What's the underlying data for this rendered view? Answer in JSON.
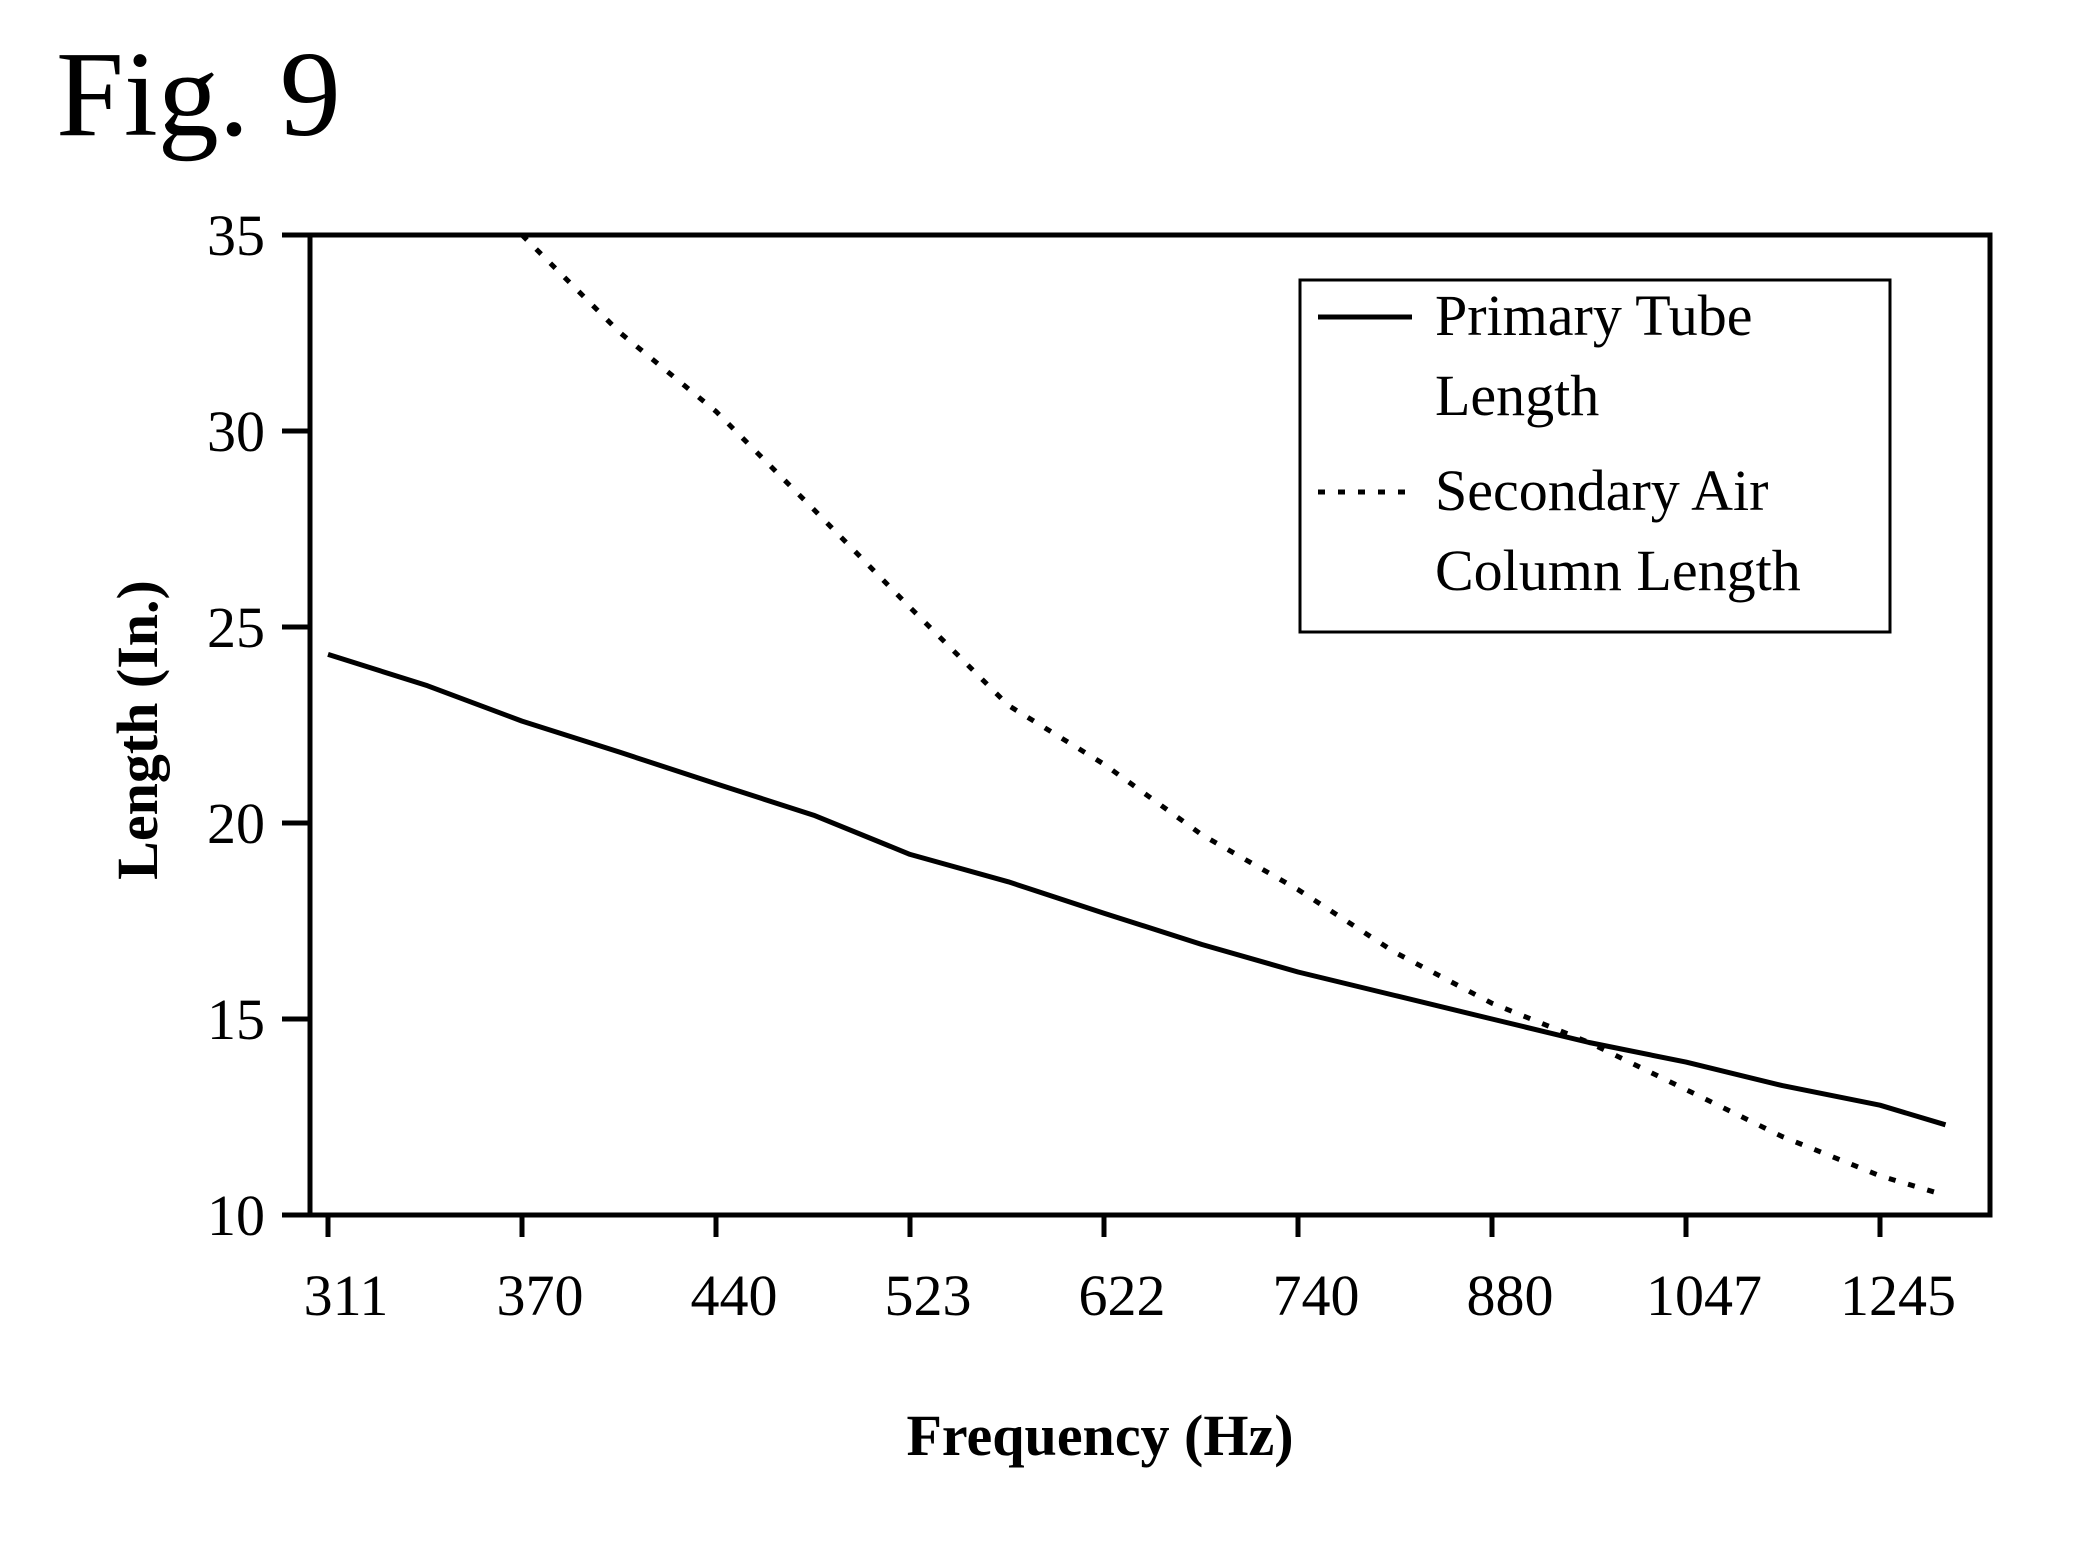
{
  "figure": {
    "label": "Fig. 9"
  },
  "chart_data": {
    "type": "line",
    "title": "",
    "xlabel": "Frequency (Hz)",
    "ylabel": "Length (In.)",
    "categories": [
      "311",
      "370",
      "440",
      "523",
      "622",
      "740",
      "880",
      "1047",
      "1245"
    ],
    "ylim": [
      10,
      35
    ],
    "yticks": [
      "10",
      "15",
      "20",
      "25",
      "30",
      "35"
    ],
    "grid": false,
    "legend_position": "top-right",
    "legend": [
      {
        "lines": [
          "Primary Tube",
          "Length"
        ],
        "style": "solid"
      },
      {
        "lines": [
          "Secondary Air",
          "Column Length"
        ],
        "style": "dotted"
      }
    ],
    "series": [
      {
        "name": "Primary Tube Length",
        "style": "solid",
        "x": [
          311,
          340,
          370,
          404,
          440,
          480,
          523,
          571,
          622,
          679,
          740,
          807,
          880,
          960,
          1047,
          1141,
          1245,
          1320
        ],
        "y": [
          24.3,
          23.5,
          22.6,
          21.8,
          21.0,
          20.2,
          19.2,
          18.5,
          17.7,
          16.9,
          16.2,
          15.6,
          15.0,
          14.4,
          13.9,
          13.3,
          12.8,
          12.3
        ]
      },
      {
        "name": "Secondary Air Column Length",
        "style": "dotted",
        "x": [
          370,
          404,
          440,
          480,
          523,
          571,
          622,
          679,
          740,
          807,
          880,
          960,
          1047,
          1141,
          1245,
          1320
        ],
        "y": [
          35.0,
          32.5,
          30.5,
          28.0,
          25.5,
          23.0,
          21.5,
          19.7,
          18.3,
          16.7,
          15.4,
          14.4,
          13.2,
          12.0,
          11.0,
          10.5
        ]
      }
    ],
    "colors": {
      "line": "#000000",
      "background": "#ffffff"
    }
  }
}
